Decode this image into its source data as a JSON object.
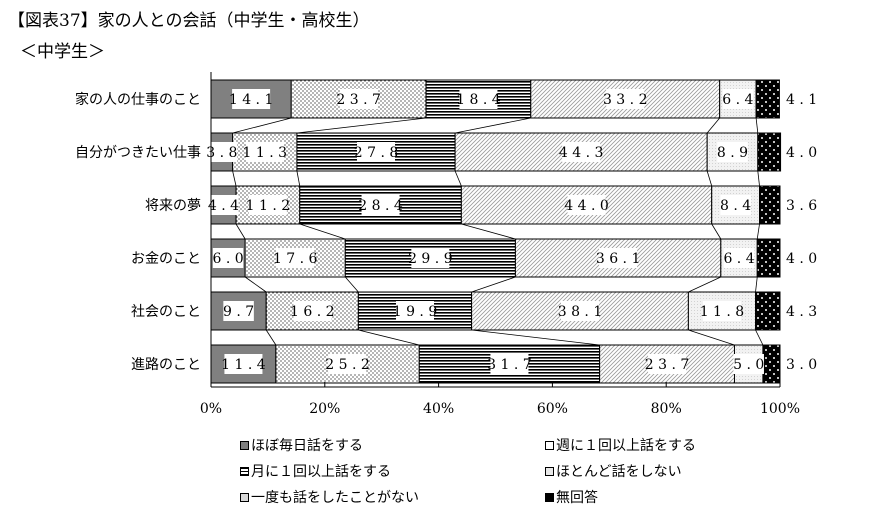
{
  "title": "【図表37】家の人との会話（中学生・高校生）",
  "subtitle": "＜中学生＞",
  "chart_data": {
    "type": "bar",
    "orientation": "horizontal",
    "stacked": "percent",
    "categories": [
      "家の人の仕事のこと",
      "自分がつきたい仕事",
      "将来の夢",
      "お金のこと",
      "社会のこと",
      "進路のこと"
    ],
    "series": [
      {
        "name": "ほぼ毎日話をする",
        "values": [
          14.1,
          3.8,
          4.4,
          6.0,
          9.7,
          11.4
        ],
        "value_labels": [
          "14.1",
          "3.8",
          "4.4",
          "6.0",
          "9.7",
          "11.4"
        ]
      },
      {
        "name": "週に１回以上話をする",
        "values": [
          23.7,
          11.3,
          11.2,
          17.6,
          16.2,
          25.2
        ],
        "value_labels": [
          "23.7",
          "11.3",
          "11.2",
          "17.6",
          "16.2",
          "25.2"
        ]
      },
      {
        "name": "月に１回以上話をする",
        "values": [
          18.4,
          27.8,
          28.4,
          29.9,
          19.9,
          31.7
        ],
        "value_labels": [
          "18.4",
          "27.8",
          "28.4",
          "29.9",
          "19.9",
          "31.7"
        ]
      },
      {
        "name": "ほとんど話をしない",
        "values": [
          33.2,
          44.3,
          44.0,
          36.1,
          38.1,
          23.7
        ],
        "value_labels": [
          "33.2",
          "44.3",
          "44.0",
          "36.1",
          "38.1",
          "23.7"
        ]
      },
      {
        "name": "一度も話をしたことがない",
        "values": [
          6.4,
          8.9,
          8.4,
          6.4,
          11.8,
          5.0
        ],
        "value_labels": [
          "6.4",
          "8.9",
          "8.4",
          "6.4",
          "11.8",
          "5.0"
        ]
      },
      {
        "name": "無回答",
        "values": [
          4.1,
          4.0,
          3.6,
          4.0,
          4.3,
          3.0
        ],
        "value_labels": [
          "4.1",
          "4.0",
          "3.6",
          "4.0",
          "4.3",
          "3.0"
        ]
      }
    ],
    "x_ticks": [
      "0%",
      "20%",
      "40%",
      "60%",
      "80%",
      "100%"
    ],
    "xlim": [
      0,
      100
    ],
    "grid": false,
    "legend_position": "bottom",
    "colors": {
      "daily": "#808080",
      "weekly": "#ffffff",
      "monthly": "#000000",
      "rarely": "#c8c8c8",
      "never": "#e0e0e0",
      "noanswer": "#000000"
    }
  }
}
